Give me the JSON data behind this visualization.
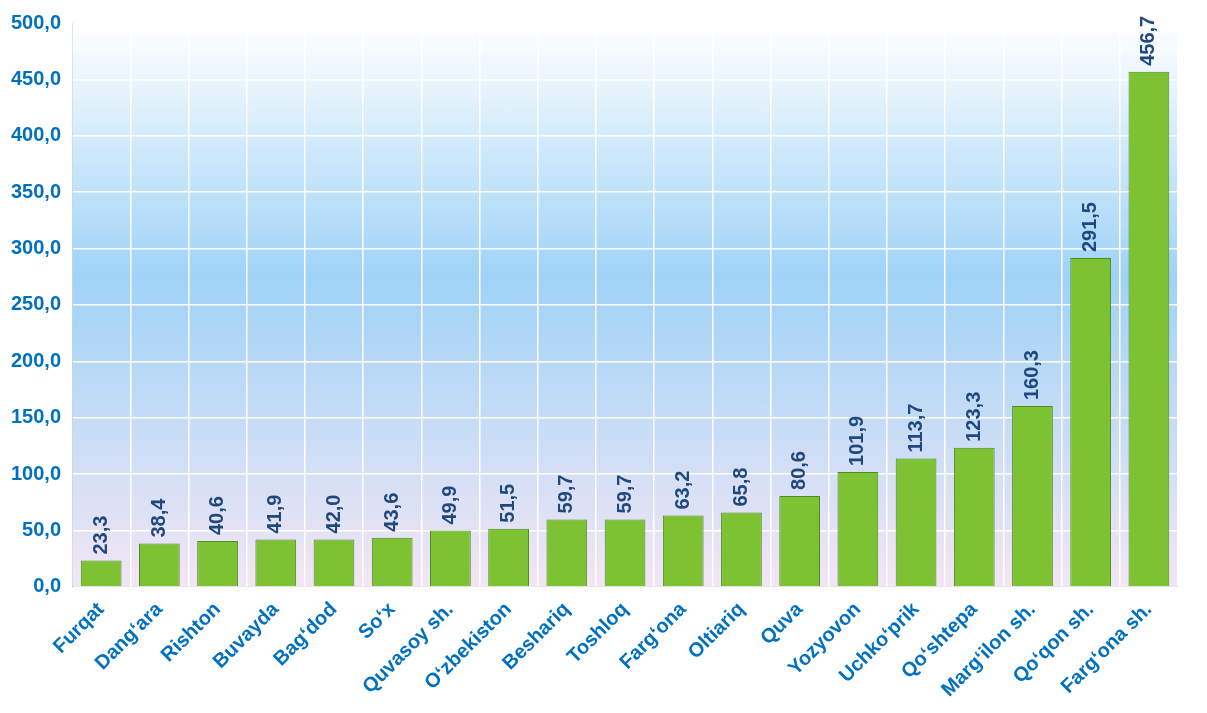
{
  "chart_data": {
    "type": "bar",
    "categories": [
      "Furqat",
      "Dangʻara",
      "Rishton",
      "Buvayda",
      "Bagʻdod",
      "Soʻx",
      "Quvasoy sh.",
      "Oʻzbekiston",
      "Beshariq",
      "Toshloq",
      "Fargʻona",
      "Oltiariq",
      "Quva",
      "Yozyovon",
      "Uchkoʻprik",
      "Qoʻshtepa",
      "Margʻilon sh.",
      "Qoʻqon sh.",
      "Fargʻona sh."
    ],
    "values": [
      23.3,
      38.4,
      40.6,
      41.9,
      42.0,
      43.6,
      49.9,
      51.5,
      59.7,
      59.7,
      63.2,
      65.8,
      80.6,
      101.9,
      113.7,
      123.3,
      160.3,
      291.5,
      456.7
    ],
    "value_labels": [
      "23,3",
      "38,4",
      "40,6",
      "41,9",
      "42,0",
      "43,6",
      "49,9",
      "51,5",
      "59,7",
      "59,7",
      "63,2",
      "65,8",
      "80,6",
      "101,9",
      "113,7",
      "123,3",
      "160,3",
      "291,5",
      "456,7"
    ],
    "color": "#7dc232",
    "ylim": [
      0,
      500
    ],
    "yticks": [
      {
        "value": 0,
        "label": "0,0"
      },
      {
        "value": 50,
        "label": "50,0"
      },
      {
        "value": 100,
        "label": "100,0"
      },
      {
        "value": 150,
        "label": "150,0"
      },
      {
        "value": 200,
        "label": "200,0"
      },
      {
        "value": 250,
        "label": "250,0"
      },
      {
        "value": 300,
        "label": "300,0"
      },
      {
        "value": 350,
        "label": "350,0"
      },
      {
        "value": 400,
        "label": "400,0"
      },
      {
        "value": 450,
        "label": "450,0"
      },
      {
        "value": 500,
        "label": "500,0"
      }
    ],
    "grid": true,
    "legend": false
  }
}
